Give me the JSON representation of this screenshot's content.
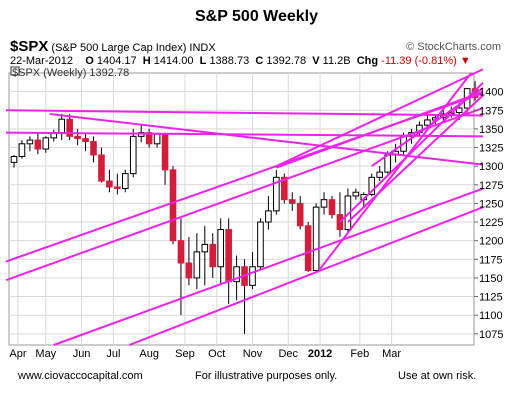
{
  "title": "S&P 500 Weekly",
  "header": {
    "symbol": "$SPX",
    "name": "(S&P 500 Large Cap Index) INDX",
    "watermark": "© StockCharts.com",
    "date": "22-Mar-2012",
    "o_label": "O",
    "o_value": "1404.17",
    "h_label": "H",
    "h_value": "1414.00",
    "l_label": "L",
    "l_value": "1388.73",
    "c_label": "C",
    "c_value": "1392.78",
    "v_label": "V",
    "v_value": "11.2B",
    "chg_label": "Chg",
    "chg_value": "-11.39 (-0.81%)",
    "chg_icon": "down-triangle-icon"
  },
  "legend": "$SPX (Weekly) 1392.78",
  "footer": {
    "left": "www.ciovaccocapital.com",
    "center": "For illustrative purposes only.",
    "right": "Use at own risk."
  },
  "colors": {
    "up": "#ffffff",
    "down": "#d21f3c",
    "trendline": "#ee22ee",
    "grid": "#d9d9d9"
  },
  "chart_data": {
    "type": "candlestick",
    "ylim": [
      1060,
      1425
    ],
    "y_ticks": [
      1075,
      1100,
      1125,
      1150,
      1175,
      1200,
      1225,
      1250,
      1275,
      1300,
      1325,
      1350,
      1375,
      1400
    ],
    "x_tick_labels": [
      {
        "label": "Apr",
        "index": 0.5,
        "bold": false
      },
      {
        "label": "May",
        "index": 4,
        "bold": false
      },
      {
        "label": "Jun",
        "index": 8.5,
        "bold": false
      },
      {
        "label": "Jul",
        "index": 12.5,
        "bold": false
      },
      {
        "label": "Aug",
        "index": 17,
        "bold": false
      },
      {
        "label": "Sep",
        "index": 21.5,
        "bold": false
      },
      {
        "label": "Oct",
        "index": 25.5,
        "bold": false
      },
      {
        "label": "Nov",
        "index": 30,
        "bold": false
      },
      {
        "label": "Dec",
        "index": 34.5,
        "bold": false
      },
      {
        "label": "2012",
        "index": 38.5,
        "bold": true
      },
      {
        "label": "Feb",
        "index": 43.5,
        "bold": false
      },
      {
        "label": "Mar",
        "index": 47.5,
        "bold": false
      }
    ],
    "candles": [
      {
        "o": 1305,
        "h": 1315,
        "l": 1298,
        "c": 1313
      },
      {
        "o": 1313,
        "h": 1335,
        "l": 1310,
        "c": 1330
      },
      {
        "o": 1330,
        "h": 1340,
        "l": 1320,
        "c": 1335
      },
      {
        "o": 1335,
        "h": 1345,
        "l": 1316,
        "c": 1323
      },
      {
        "o": 1323,
        "h": 1340,
        "l": 1318,
        "c": 1338
      },
      {
        "o": 1338,
        "h": 1349,
        "l": 1333,
        "c": 1345
      },
      {
        "o": 1345,
        "h": 1370,
        "l": 1335,
        "c": 1363
      },
      {
        "o": 1363,
        "h": 1370,
        "l": 1335,
        "c": 1340
      },
      {
        "o": 1340,
        "h": 1350,
        "l": 1328,
        "c": 1337
      },
      {
        "o": 1337,
        "h": 1345,
        "l": 1320,
        "c": 1333
      },
      {
        "o": 1333,
        "h": 1340,
        "l": 1305,
        "c": 1315
      },
      {
        "o": 1315,
        "h": 1325,
        "l": 1278,
        "c": 1280
      },
      {
        "o": 1280,
        "h": 1295,
        "l": 1265,
        "c": 1272
      },
      {
        "o": 1272,
        "h": 1290,
        "l": 1262,
        "c": 1270
      },
      {
        "o": 1270,
        "h": 1295,
        "l": 1265,
        "c": 1290
      },
      {
        "o": 1290,
        "h": 1350,
        "l": 1285,
        "c": 1340
      },
      {
        "o": 1340,
        "h": 1356,
        "l": 1332,
        "c": 1345
      },
      {
        "o": 1345,
        "h": 1350,
        "l": 1325,
        "c": 1330
      },
      {
        "o": 1330,
        "h": 1345,
        "l": 1325,
        "c": 1343
      },
      {
        "o": 1343,
        "h": 1345,
        "l": 1275,
        "c": 1295
      },
      {
        "o": 1295,
        "h": 1300,
        "l": 1195,
        "c": 1200
      },
      {
        "o": 1200,
        "h": 1230,
        "l": 1100,
        "c": 1170
      },
      {
        "o": 1170,
        "h": 1205,
        "l": 1140,
        "c": 1150
      },
      {
        "o": 1150,
        "h": 1210,
        "l": 1135,
        "c": 1185
      },
      {
        "o": 1185,
        "h": 1220,
        "l": 1140,
        "c": 1195
      },
      {
        "o": 1195,
        "h": 1210,
        "l": 1150,
        "c": 1165
      },
      {
        "o": 1165,
        "h": 1230,
        "l": 1140,
        "c": 1215
      },
      {
        "o": 1215,
        "h": 1230,
        "l": 1115,
        "c": 1145
      },
      {
        "o": 1145,
        "h": 1180,
        "l": 1120,
        "c": 1165
      },
      {
        "o": 1165,
        "h": 1175,
        "l": 1075,
        "c": 1140
      },
      {
        "o": 1140,
        "h": 1185,
        "l": 1135,
        "c": 1165
      },
      {
        "o": 1165,
        "h": 1230,
        "l": 1162,
        "c": 1225
      },
      {
        "o": 1225,
        "h": 1260,
        "l": 1215,
        "c": 1240
      },
      {
        "o": 1240,
        "h": 1295,
        "l": 1235,
        "c": 1285
      },
      {
        "o": 1285,
        "h": 1290,
        "l": 1250,
        "c": 1255
      },
      {
        "o": 1255,
        "h": 1265,
        "l": 1240,
        "c": 1250
      },
      {
        "o": 1250,
        "h": 1260,
        "l": 1215,
        "c": 1220
      },
      {
        "o": 1220,
        "h": 1225,
        "l": 1158,
        "c": 1160
      },
      {
        "o": 1160,
        "h": 1250,
        "l": 1158,
        "c": 1245
      },
      {
        "o": 1245,
        "h": 1265,
        "l": 1235,
        "c": 1255
      },
      {
        "o": 1255,
        "h": 1260,
        "l": 1230,
        "c": 1235
      },
      {
        "o": 1235,
        "h": 1265,
        "l": 1205,
        "c": 1215
      },
      {
        "o": 1215,
        "h": 1270,
        "l": 1210,
        "c": 1260
      },
      {
        "o": 1260,
        "h": 1270,
        "l": 1255,
        "c": 1265
      },
      {
        "o": 1255,
        "h": 1265,
        "l": 1245,
        "c": 1262
      },
      {
        "o": 1262,
        "h": 1290,
        "l": 1260,
        "c": 1285
      },
      {
        "o": 1285,
        "h": 1300,
        "l": 1280,
        "c": 1292
      },
      {
        "o": 1292,
        "h": 1320,
        "l": 1290,
        "c": 1315
      },
      {
        "o": 1315,
        "h": 1330,
        "l": 1305,
        "c": 1320
      },
      {
        "o": 1320,
        "h": 1345,
        "l": 1315,
        "c": 1340
      },
      {
        "o": 1340,
        "h": 1350,
        "l": 1330,
        "c": 1345
      },
      {
        "o": 1345,
        "h": 1360,
        "l": 1340,
        "c": 1355
      },
      {
        "o": 1355,
        "h": 1370,
        "l": 1350,
        "c": 1362
      },
      {
        "o": 1362,
        "h": 1370,
        "l": 1355,
        "c": 1365
      },
      {
        "o": 1365,
        "h": 1375,
        "l": 1360,
        "c": 1370
      },
      {
        "o": 1370,
        "h": 1380,
        "l": 1365,
        "c": 1372
      },
      {
        "o": 1372,
        "h": 1385,
        "l": 1362,
        "c": 1378
      },
      {
        "o": 1378,
        "h": 1405,
        "l": 1370,
        "c": 1404
      },
      {
        "o": 1404,
        "h": 1414,
        "l": 1388,
        "c": 1392
      }
    ],
    "trendlines": [
      {
        "i1": -1,
        "p1": 1375,
        "i2": 59,
        "p2": 1368
      },
      {
        "i1": -1,
        "p1": 1345,
        "i2": 59,
        "p2": 1340
      },
      {
        "i1": 4.5,
        "p1": 1370,
        "i2": 59,
        "p2": 1302
      },
      {
        "i1": -1,
        "p1": 1172,
        "i2": 59,
        "p2": 1398
      },
      {
        "i1": -1,
        "p1": 1147,
        "i2": 59,
        "p2": 1378
      },
      {
        "i1": 5,
        "p1": 1060,
        "i2": 59,
        "p2": 1270
      },
      {
        "i1": 14.5,
        "p1": 1060,
        "i2": 59,
        "p2": 1245
      },
      {
        "i1": 33,
        "p1": 1300,
        "i2": 59,
        "p2": 1430
      },
      {
        "i1": 33,
        "p1": 1298,
        "i2": 59,
        "p2": 1400
      },
      {
        "i1": 38.5,
        "p1": 1162,
        "i2": 57.5,
        "p2": 1425
      },
      {
        "i1": 41,
        "p1": 1225,
        "i2": 59,
        "p2": 1412
      },
      {
        "i1": 42,
        "p1": 1225,
        "i2": 59,
        "p2": 1395
      },
      {
        "i1": 45,
        "p1": 1300,
        "i2": 59,
        "p2": 1405
      }
    ]
  }
}
